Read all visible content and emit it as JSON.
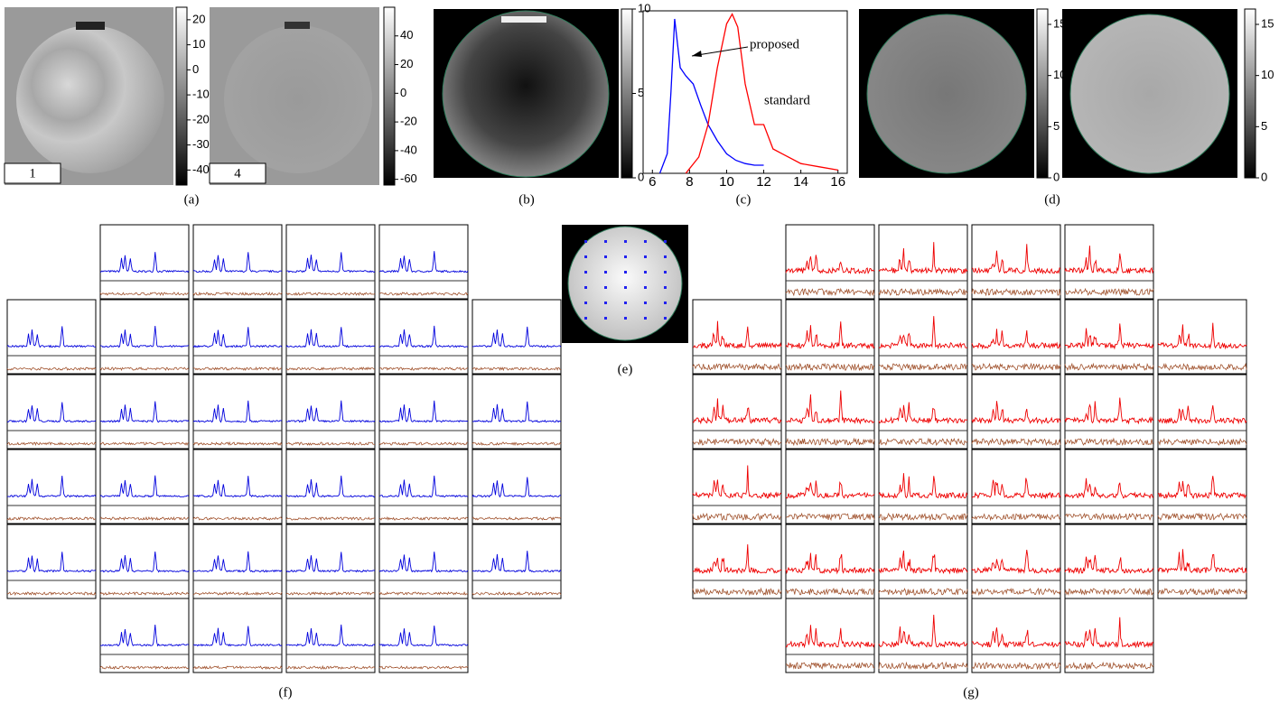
{
  "panels": {
    "a": {
      "caption": "(a)",
      "image_labels": [
        "1",
        "4"
      ],
      "colorbars": [
        {
          "lim": [
            -46,
            25
          ],
          "ticks": [
            20,
            10,
            0,
            -10,
            -20,
            -30,
            -40
          ]
        },
        {
          "lim": [
            -64,
            60
          ],
          "ticks": [
            40,
            20,
            0,
            -20,
            -40,
            -60
          ]
        }
      ]
    },
    "b": {
      "caption": "(b)",
      "colorbar": {
        "lim": [
          0,
          10
        ],
        "ticks": [
          10,
          5,
          0
        ]
      }
    },
    "c": {
      "caption": "(c)",
      "chart_data": {
        "type": "line",
        "xlim": [
          5.5,
          16.5
        ],
        "xticks": [
          6,
          8,
          10,
          12,
          14,
          16
        ],
        "ylim": [
          0,
          1
        ],
        "series": [
          {
            "name": "proposed",
            "color": "#0000ff",
            "x": [
              6.4,
              6.8,
              7.0,
              7.2,
              7.5,
              7.8,
              8.2,
              8.6,
              9.0,
              9.5,
              10,
              10.5,
              11,
              11.5,
              12
            ],
            "values": [
              0,
              0.12,
              0.5,
              0.95,
              0.65,
              0.6,
              0.55,
              0.42,
              0.3,
              0.2,
              0.12,
              0.08,
              0.06,
              0.05,
              0.05
            ]
          },
          {
            "name": "standard",
            "color": "#ff0000",
            "x": [
              7.8,
              8.5,
              9,
              9.5,
              10,
              10.3,
              10.6,
              11,
              11.5,
              12,
              12.5,
              13,
              14,
              15,
              16
            ],
            "values": [
              0,
              0.1,
              0.3,
              0.65,
              0.92,
              0.98,
              0.9,
              0.55,
              0.3,
              0.3,
              0.15,
              0.12,
              0.06,
              0.04,
              0.02
            ]
          }
        ]
      }
    },
    "d": {
      "caption": "(d)",
      "colorbars": [
        {
          "lim": [
            0,
            16.5
          ],
          "ticks": [
            15,
            10,
            5,
            0
          ]
        },
        {
          "lim": [
            0,
            16.5
          ],
          "ticks": [
            15,
            10,
            5,
            0
          ]
        }
      ]
    },
    "e": {
      "caption": "(e)"
    },
    "f": {
      "caption": "(f)"
    },
    "g": {
      "caption": "(g)"
    }
  }
}
